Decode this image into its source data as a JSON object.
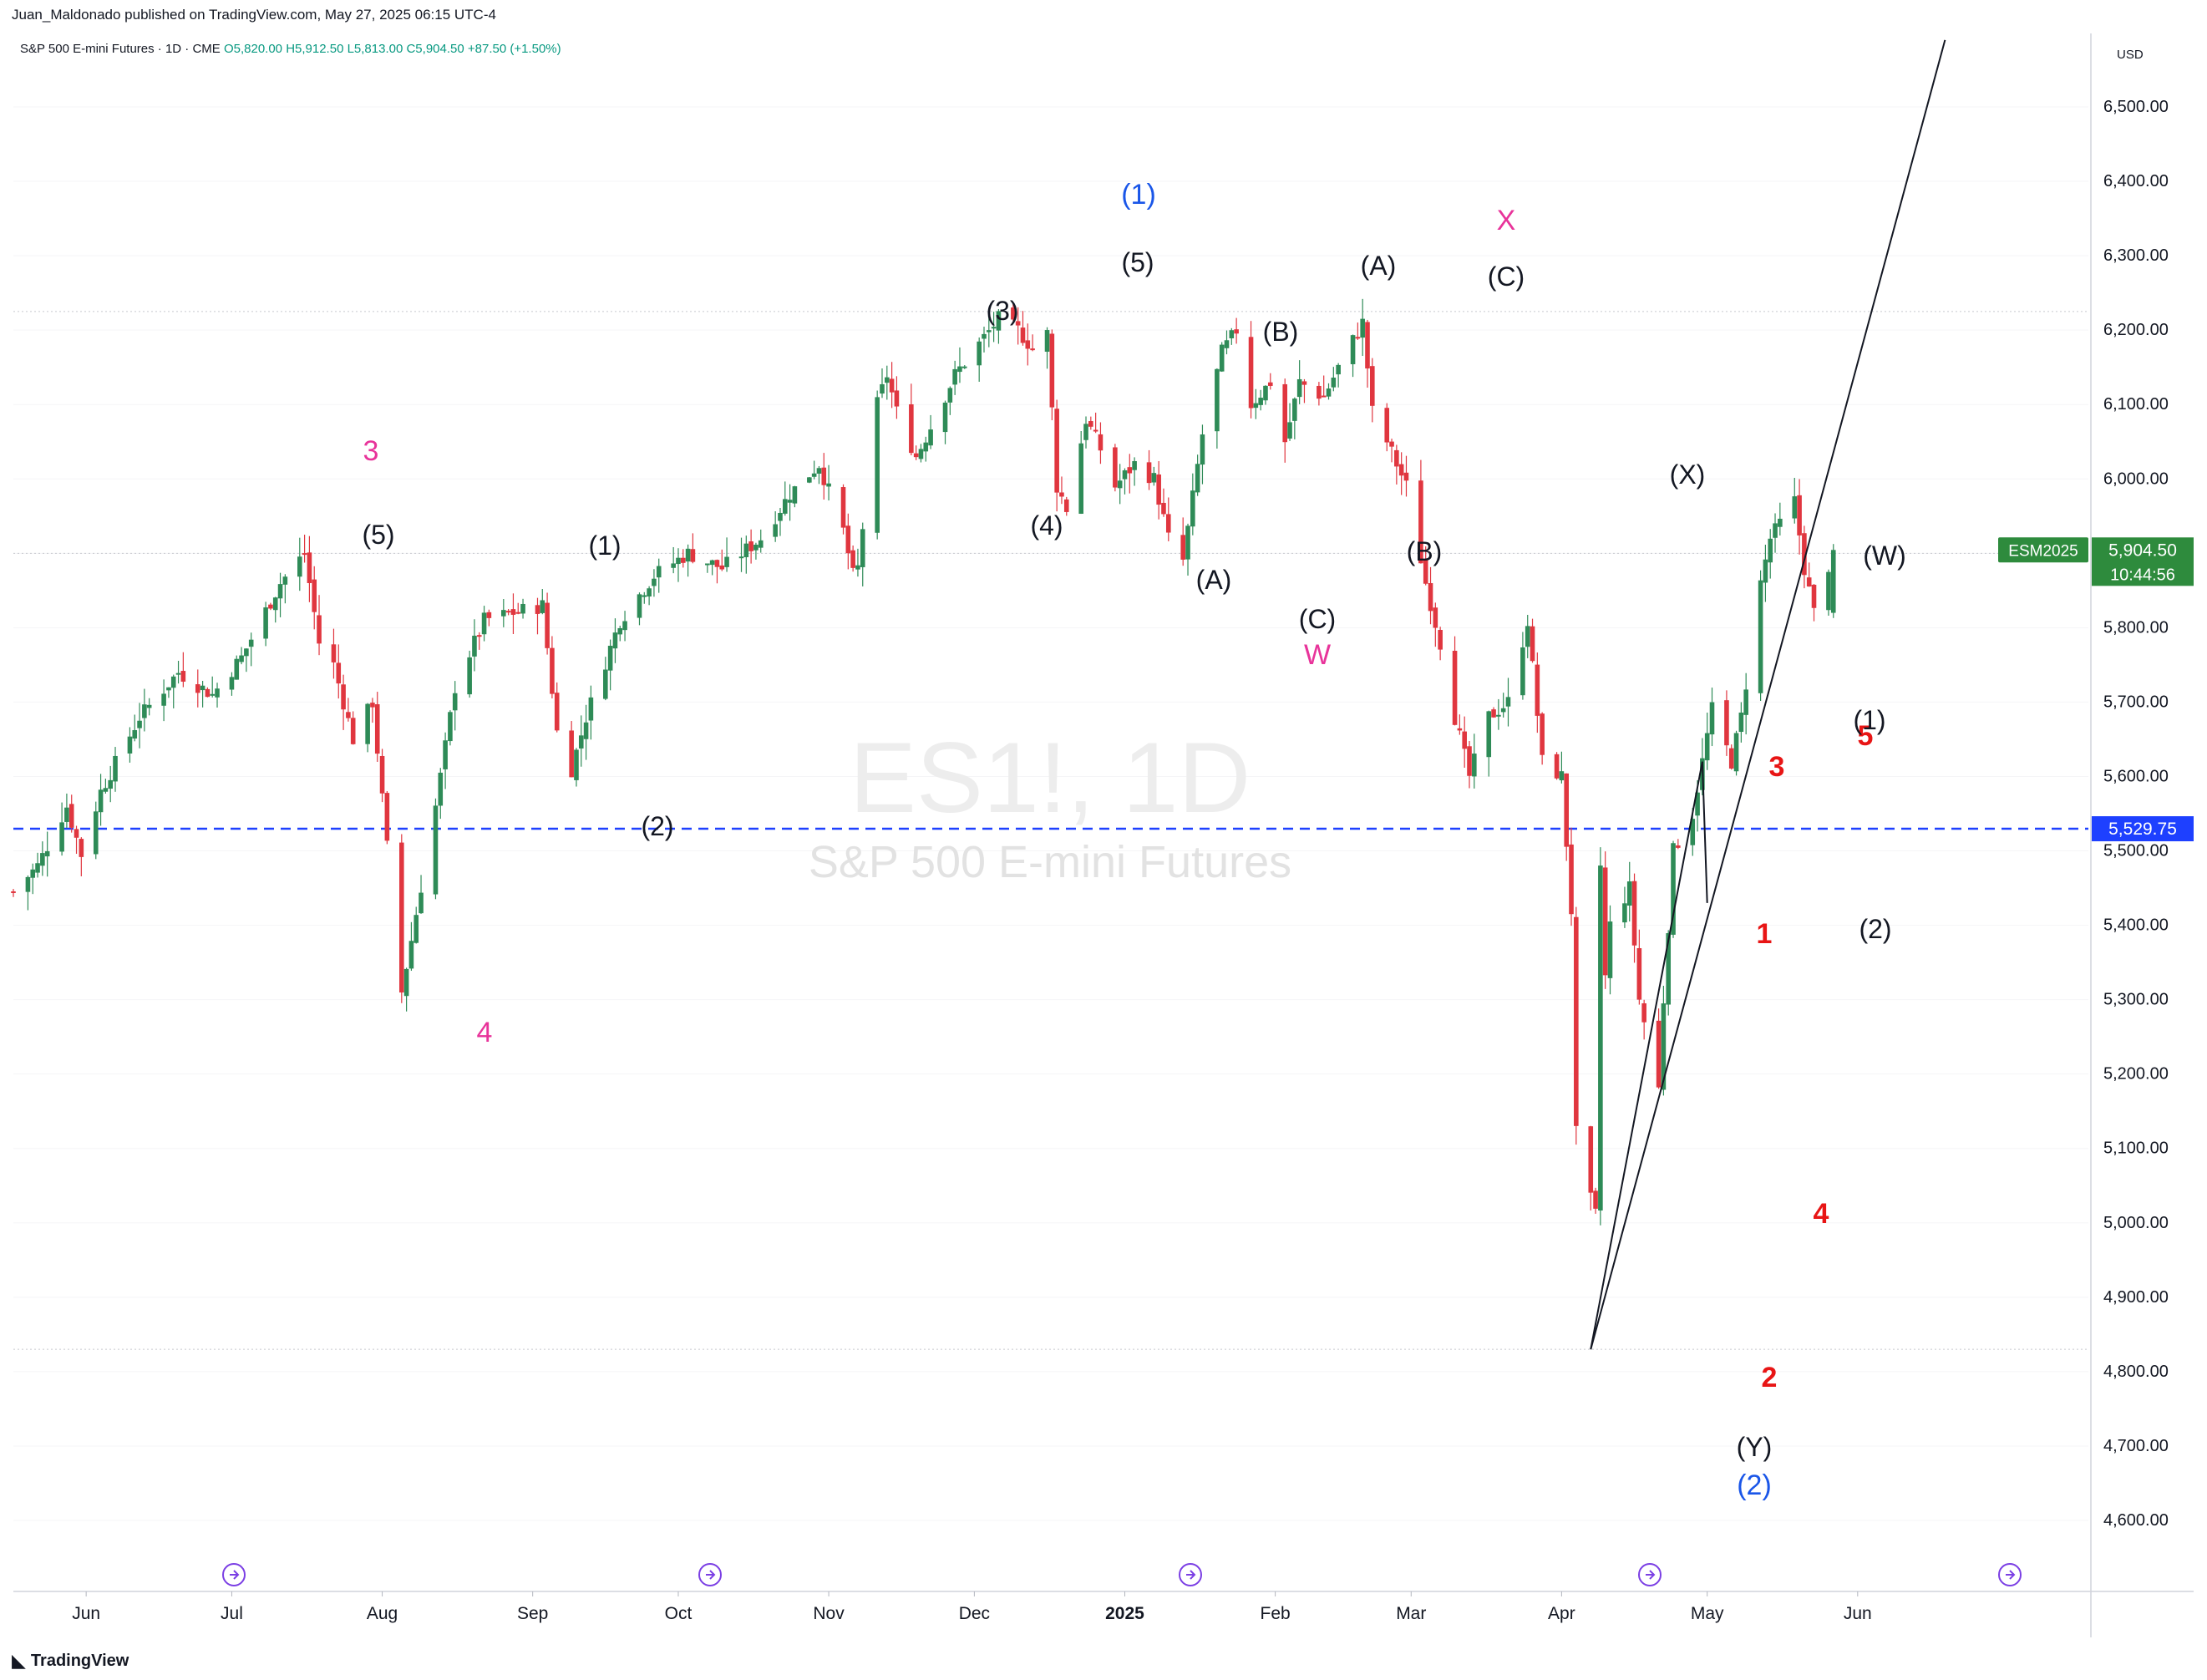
{
  "header": {
    "publisher": "Juan_Maldonado published on TradingView.com, May 27, 2025 06:15 UTC-4",
    "symbol_line": "S&P 500 E-mini Futures · 1D · CME",
    "ohlc": "O5,820.00  H5,912.50  L5,813.00  C5,904.50  +87.50 (+1.50%)"
  },
  "watermark": {
    "ticker": "ES1!, 1D",
    "name": "S&P 500 E-mini Futures"
  },
  "footer": {
    "brand": "TradingView"
  },
  "price_axis": {
    "currency": "USD",
    "labels": [
      "6,500.00",
      "6,400.00",
      "6,300.00",
      "6,200.00",
      "6,100.00",
      "6,000.00",
      "5,900.00",
      "5,800.00",
      "5,700.00",
      "5,600.00",
      "5,500.00",
      "5,400.00",
      "5,300.00",
      "5,200.00",
      "5,100.00",
      "5,000.00",
      "4,900.00",
      "4,800.00",
      "4,700.00",
      "4,600.00"
    ],
    "last_price_tag": {
      "symbol": "ESM2025",
      "price": "5,904.50",
      "countdown": "10:44:56",
      "color": "#2e8b3d"
    },
    "level_tag": {
      "price": "5,529.75",
      "color": "#1e40ff"
    }
  },
  "time_axis": {
    "labels": [
      "Jun",
      "Jul",
      "Aug",
      "Sep",
      "Oct",
      "Nov",
      "Dec",
      "2025",
      "Feb",
      "Mar",
      "Apr",
      "May",
      "Jun"
    ]
  },
  "colors": {
    "up": "#2e8b57",
    "down": "#e0363f",
    "blue_label": "#1a56e8",
    "pink_label": "#e8339a",
    "red_label": "#e81515",
    "dashed_level": "#1e40ff"
  },
  "wave_labels": [
    {
      "text": "3",
      "color": "pink"
    },
    {
      "text": "(5)",
      "color": "black"
    },
    {
      "text": "4",
      "color": "pink"
    },
    {
      "text": "(1)",
      "color": "black"
    },
    {
      "text": "(2)",
      "color": "black"
    },
    {
      "text": "(3)",
      "color": "black"
    },
    {
      "text": "(4)",
      "color": "black"
    },
    {
      "text": "(1)",
      "color": "blue"
    },
    {
      "text": "(5)",
      "color": "black"
    },
    {
      "text": "(A)",
      "color": "black"
    },
    {
      "text": "(B)",
      "color": "black"
    },
    {
      "text": "(C)",
      "color": "black"
    },
    {
      "text": "W",
      "color": "pink"
    },
    {
      "text": "(A)",
      "color": "black"
    },
    {
      "text": "(B)",
      "color": "black"
    },
    {
      "text": "X",
      "color": "pink"
    },
    {
      "text": "(C)",
      "color": "black"
    },
    {
      "text": "(X)",
      "color": "black"
    },
    {
      "text": "(W)",
      "color": "black"
    },
    {
      "text": "1",
      "color": "red"
    },
    {
      "text": "2",
      "color": "red"
    },
    {
      "text": "3",
      "color": "red"
    },
    {
      "text": "4",
      "color": "red"
    },
    {
      "text": "5",
      "color": "red"
    },
    {
      "text": "(Y)",
      "color": "black"
    },
    {
      "text": "(2)",
      "color": "blue"
    },
    {
      "text": "(1)",
      "color": "black"
    },
    {
      "text": "(2)",
      "color": "black"
    }
  ],
  "chart_data": {
    "type": "candlestick",
    "title": "S&P 500 E-mini Futures · 1D · CME",
    "ylim": [
      4520,
      6590
    ],
    "y_ticks": [
      4600,
      4700,
      4800,
      4900,
      5000,
      5100,
      5200,
      5300,
      5400,
      5500,
      5600,
      5700,
      5800,
      5900,
      6000,
      6100,
      6200,
      6300,
      6400,
      6500
    ],
    "x_range": [
      "2024-05-17",
      "2025-06-22"
    ],
    "horizontal_levels": [
      {
        "price": 5529.75,
        "style": "dashed"
      },
      {
        "price": 6225,
        "style": "dotted"
      },
      {
        "price": 5900,
        "style": "dotted"
      },
      {
        "price": 4830,
        "style": "dotted"
      }
    ],
    "trend_lines": [
      {
        "from": [
          "2025-04-07",
          4830
        ],
        "to": [
          "2025-06-19",
          6590
        ]
      },
      {
        "from": [
          "2025-04-07",
          4830
        ],
        "to": [
          "2025-04-30",
          5620
        ]
      },
      {
        "from": [
          "2025-04-30",
          5620
        ],
        "to": [
          "2025-05-01",
          5430
        ]
      }
    ],
    "path": [
      [
        "2024-05-17",
        5445
      ],
      [
        "2024-05-22",
        5480
      ],
      [
        "2024-05-28",
        5560
      ],
      [
        "2024-05-31",
        5495
      ],
      [
        "2024-06-04",
        5580
      ],
      [
        "2024-06-12",
        5680
      ],
      [
        "2024-06-20",
        5740
      ],
      [
        "2024-06-27",
        5710
      ],
      [
        "2024-07-03",
        5760
      ],
      [
        "2024-07-11",
        5860
      ],
      [
        "2024-07-16",
        5900
      ],
      [
        "2024-07-19",
        5780
      ],
      [
        "2024-07-22",
        5750
      ],
      [
        "2024-07-26",
        5650
      ],
      [
        "2024-07-30",
        5700
      ],
      [
        "2024-08-05",
        5310
      ],
      [
        "2024-08-07",
        5380
      ],
      [
        "2024-08-12",
        5560
      ],
      [
        "2024-08-16",
        5720
      ],
      [
        "2024-08-22",
        5810
      ],
      [
        "2024-08-28",
        5820
      ],
      [
        "2024-09-03",
        5830
      ],
      [
        "2024-09-06",
        5660
      ],
      [
        "2024-09-09",
        5610
      ],
      [
        "2024-09-12",
        5680
      ],
      [
        "2024-09-19",
        5810
      ],
      [
        "2024-09-26",
        5870
      ],
      [
        "2024-10-03",
        5900
      ],
      [
        "2024-10-10",
        5880
      ],
      [
        "2024-10-18",
        5920
      ],
      [
        "2024-10-24",
        5980
      ],
      [
        "2024-10-30",
        6020
      ],
      [
        "2024-11-04",
        5930
      ],
      [
        "2024-11-06",
        5870
      ],
      [
        "2024-11-07",
        5880
      ],
      [
        "2024-11-11",
        6100
      ],
      [
        "2024-11-13",
        6140
      ],
      [
        "2024-11-15",
        6090
      ],
      [
        "2024-11-19",
        6030
      ],
      [
        "2024-11-22",
        6070
      ],
      [
        "2024-11-27",
        6140
      ],
      [
        "2024-12-03",
        6190
      ],
      [
        "2024-12-06",
        6215
      ],
      [
        "2024-12-10",
        6200
      ],
      [
        "2024-12-13",
        6175
      ],
      [
        "2024-12-16",
        6195
      ],
      [
        "2024-12-18",
        5990
      ],
      [
        "2024-12-20",
        5960
      ],
      [
        "2024-12-24",
        6080
      ],
      [
        "2024-12-27",
        6040
      ],
      [
        "2024-12-30",
        5990
      ],
      [
        "2025-01-03",
        6020
      ],
      [
        "2025-01-07",
        6000
      ],
      [
        "2025-01-10",
        5920
      ],
      [
        "2025-01-13",
        5890
      ],
      [
        "2025-01-17",
        6060
      ],
      [
        "2025-01-21",
        6170
      ],
      [
        "2025-01-24",
        6200
      ],
      [
        "2025-01-27",
        6100
      ],
      [
        "2025-01-31",
        6130
      ],
      [
        "2025-02-03",
        6050
      ],
      [
        "2025-02-06",
        6130
      ],
      [
        "2025-02-11",
        6110
      ],
      [
        "2025-02-14",
        6150
      ],
      [
        "2025-02-19",
        6210
      ],
      [
        "2025-02-21",
        6090
      ],
      [
        "2025-02-24",
        6050
      ],
      [
        "2025-02-28",
        5990
      ],
      [
        "2025-03-04",
        5860
      ],
      [
        "2025-03-07",
        5780
      ],
      [
        "2025-03-10",
        5680
      ],
      [
        "2025-03-13",
        5600
      ],
      [
        "2025-03-17",
        5680
      ],
      [
        "2025-03-21",
        5700
      ],
      [
        "2025-03-25",
        5810
      ],
      [
        "2025-03-28",
        5620
      ],
      [
        "2025-04-01",
        5600
      ],
      [
        "2025-04-03",
        5420
      ],
      [
        "2025-04-04",
        5120
      ],
      [
        "2025-04-07",
        5030
      ],
      [
        "2025-04-08",
        5010
      ],
      [
        "2025-04-09",
        5480
      ],
      [
        "2025-04-10",
        5330
      ],
      [
        "2025-04-11",
        5400
      ],
      [
        "2025-04-15",
        5450
      ],
      [
        "2025-04-17",
        5300
      ],
      [
        "2025-04-21",
        5180
      ],
      [
        "2025-04-22",
        5300
      ],
      [
        "2025-04-24",
        5500
      ],
      [
        "2025-04-28",
        5550
      ],
      [
        "2025-05-02",
        5690
      ],
      [
        "2025-05-06",
        5620
      ],
      [
        "2025-05-08",
        5680
      ],
      [
        "2025-05-12",
        5860
      ],
      [
        "2025-05-14",
        5920
      ],
      [
        "2025-05-19",
        5970
      ],
      [
        "2025-05-21",
        5880
      ],
      [
        "2025-05-23",
        5820
      ],
      [
        "2025-05-27",
        5904.5
      ]
    ]
  }
}
